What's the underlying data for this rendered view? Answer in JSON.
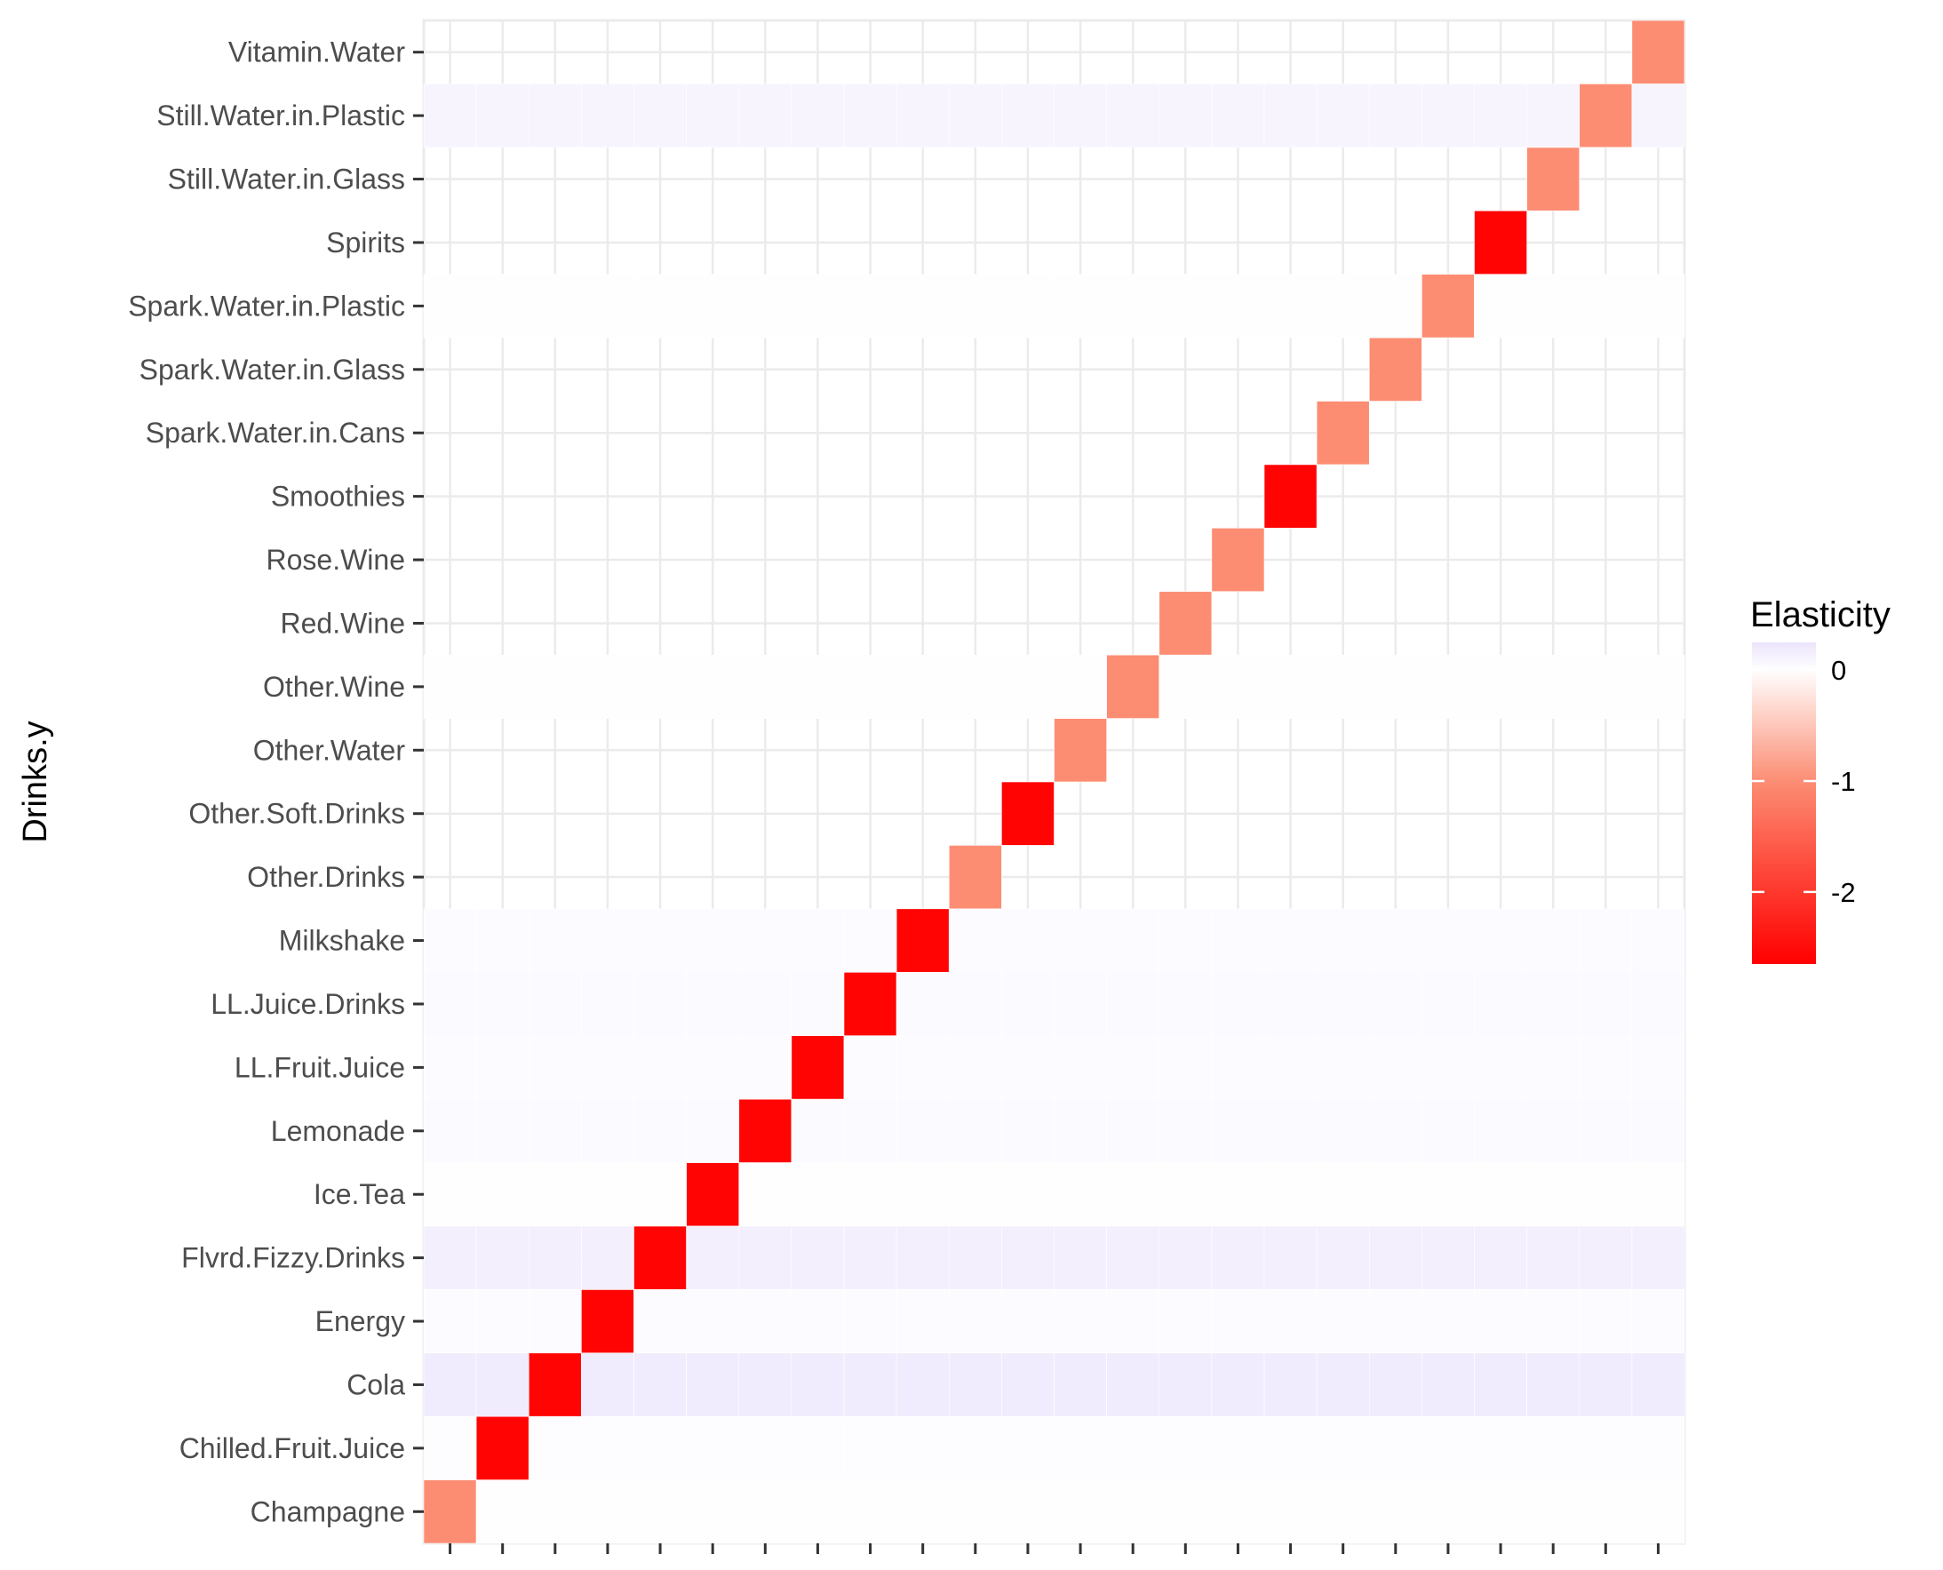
{
  "chart_data": {
    "type": "heatmap",
    "title": "",
    "xlabel": "",
    "ylabel": "Drinks.y",
    "grid": true,
    "legend_position": "right",
    "x_tick_labels_visible": false,
    "y_categories": [
      "Champagne",
      "Chilled.Fruit.Juice",
      "Cola",
      "Energy",
      "Flvrd.Fizzy.Drinks",
      "Ice.Tea",
      "Lemonade",
      "LL.Fruit.Juice",
      "LL.Juice.Drinks",
      "Milkshake",
      "Other.Drinks",
      "Other.Soft.Drinks",
      "Other.Water",
      "Other.Wine",
      "Red.Wine",
      "Rose.Wine",
      "Smoothies",
      "Spark.Water.in.Cans",
      "Spark.Water.in.Glass",
      "Spark.Water.in.Plastic",
      "Spirits",
      "Still.Water.in.Glass",
      "Still.Water.in.Plastic",
      "Vitamin.Water"
    ],
    "diagonal_values": [
      -1,
      -2.6,
      -2.6,
      -2.6,
      -2.6,
      -2.6,
      -2.6,
      -2.6,
      -2.6,
      -2.6,
      -1,
      -2.6,
      -1,
      -1,
      -1,
      -1,
      -2.6,
      -1,
      -1,
      -1,
      -2.6,
      -1,
      -1,
      -1
    ],
    "offdiag_row_values": [
      0.01,
      0.03,
      0.18,
      0.04,
      0.15,
      0.01,
      0.05,
      0.04,
      0.05,
      0.04,
      0.0,
      0.0,
      0.0,
      0.01,
      0.0,
      0.0,
      0.0,
      0.0,
      0.0,
      0.01,
      0.0,
      0.0,
      0.1,
      0.0
    ],
    "legend": {
      "title": "Elasticity",
      "colors": {
        "positive": "#ece4fc",
        "zero": "#ffffff",
        "mid": "#fc8d73",
        "negative": "#ff0000"
      },
      "limits": [
        -2.65,
        0.25
      ],
      "ticks": [
        0,
        -1,
        -2
      ],
      "tick_labels": [
        "0",
        "-1",
        "-2"
      ]
    }
  }
}
